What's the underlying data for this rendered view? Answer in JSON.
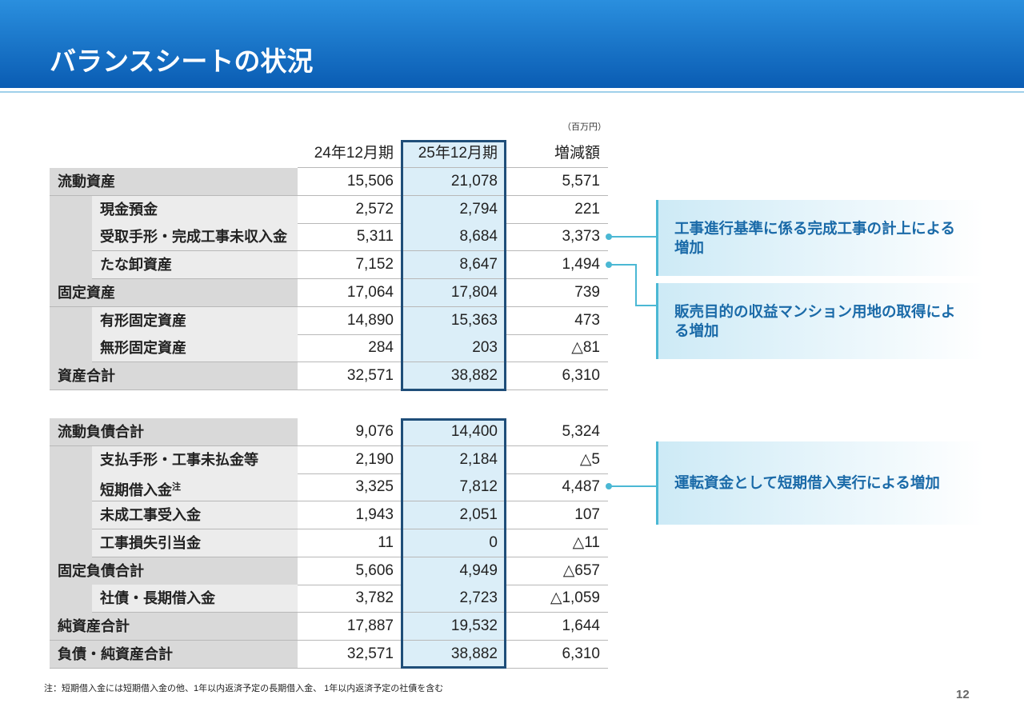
{
  "header": {
    "title": "バランスシートの状況"
  },
  "unit": "（百万円）",
  "table": {
    "columns": [
      "24年12月期",
      "25年12月期",
      "増減額"
    ],
    "sections": [
      {
        "rows": [
          {
            "label": "流動資産",
            "values": [
              "15,506",
              "21,078",
              "5,571"
            ],
            "children": [
              {
                "label": "現金預金",
                "values": [
                  "2,572",
                  "2,794",
                  "221"
                ]
              },
              {
                "label": "受取手形・完成工事未収入金",
                "values": [
                  "5,311",
                  "8,684",
                  "3,373"
                ]
              },
              {
                "label": "たな卸資産",
                "values": [
                  "7,152",
                  "8,647",
                  "1,494"
                ]
              }
            ]
          },
          {
            "label": "固定資産",
            "values": [
              "17,064",
              "17,804",
              "739"
            ],
            "children": [
              {
                "label": "有形固定資産",
                "values": [
                  "14,890",
                  "15,363",
                  "473"
                ]
              },
              {
                "label": "無形固定資産",
                "values": [
                  "284",
                  "203",
                  "△81"
                ]
              }
            ]
          },
          {
            "label": "資産合計",
            "values": [
              "32,571",
              "38,882",
              "6,310"
            ]
          }
        ]
      },
      {
        "rows": [
          {
            "label": "流動負債合計",
            "values": [
              "9,076",
              "14,400",
              "5,324"
            ],
            "children": [
              {
                "label": "支払手形・工事未払金等",
                "values": [
                  "2,190",
                  "2,184",
                  "△5"
                ]
              },
              {
                "label": "短期借入金",
                "note_mark": "注",
                "values": [
                  "3,325",
                  "7,812",
                  "4,487"
                ]
              },
              {
                "label": "未成工事受入金",
                "values": [
                  "1,943",
                  "2,051",
                  "107"
                ]
              },
              {
                "label": "工事損失引当金",
                "values": [
                  "11",
                  "0",
                  "△11"
                ]
              }
            ]
          },
          {
            "label": "固定負債合計",
            "values": [
              "5,606",
              "4,949",
              "△657"
            ],
            "children": [
              {
                "label": "社債・長期借入金",
                "values": [
                  "3,782",
                  "2,723",
                  "△1,059"
                ]
              }
            ]
          },
          {
            "label": "純資産合計",
            "values": [
              "17,887",
              "19,532",
              "1,644"
            ]
          },
          {
            "label": "負債・純資産合計",
            "values": [
              "32,571",
              "38,882",
              "6,310"
            ]
          }
        ]
      }
    ]
  },
  "callouts": [
    {
      "text": "工事進行基準に係る完成工事の計上による増加"
    },
    {
      "text": "販売目的の収益マンション用地の取得による増加"
    },
    {
      "text": "運転資金として短期借入実行による増加"
    }
  ],
  "footnote": "注：短期借入金には短期借入金の他、1年以内返済予定の長期借入金、 1年以内返済予定の社債を含む",
  "page_number": "12"
}
